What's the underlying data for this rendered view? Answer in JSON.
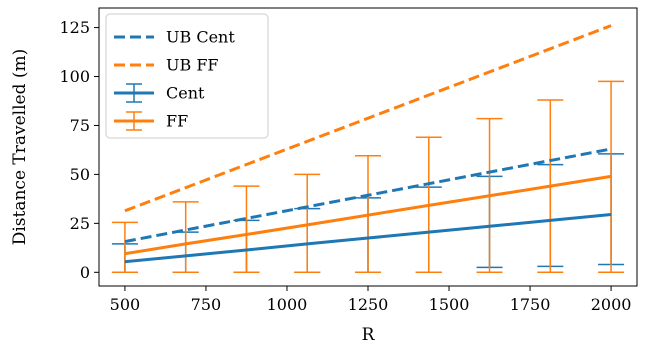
{
  "chart_data": {
    "type": "line",
    "xlabel": "R",
    "ylabel": "Distance Travelled (m)",
    "xlim": [
      420,
      2080
    ],
    "ylim": [
      -7,
      135
    ],
    "xticks": [
      500,
      750,
      1000,
      1250,
      1500,
      1750,
      2000
    ],
    "xtick_labels": [
      "500",
      "750",
      "1000",
      "1250",
      "1500",
      "1750",
      "2000"
    ],
    "yticks": [
      0,
      25,
      50,
      75,
      100,
      125
    ],
    "ytick_labels": [
      "0",
      "25",
      "50",
      "75",
      "100",
      "125"
    ],
    "grid": false,
    "legend_position": "top-left",
    "x": [
      500,
      687.5,
      875,
      1062.5,
      1250,
      1437.5,
      1625,
      1812.5,
      2000
    ],
    "series": [
      {
        "name": "UB Cent",
        "style": "dashed",
        "color": "#1f77b4",
        "x": [
          500,
          2000
        ],
        "values": [
          15.7,
          63
        ]
      },
      {
        "name": "UB FF",
        "style": "dashed",
        "color": "#ff7f0e",
        "x": [
          500,
          2000
        ],
        "values": [
          31.4,
          126
        ]
      },
      {
        "name": "Cent",
        "style": "errorbar",
        "color": "#1f77b4",
        "values": [
          5.4,
          8.4,
          11.4,
          14.5,
          17.5,
          20.5,
          23.5,
          26.5,
          29.5
        ],
        "lower": [
          0,
          0,
          0,
          0,
          0,
          0,
          2.5,
          3,
          4
        ],
        "upper": [
          14.5,
          20.5,
          26.5,
          32.5,
          38,
          43.5,
          49,
          55,
          60.5
        ]
      },
      {
        "name": "FF",
        "style": "errorbar",
        "color": "#ff7f0e",
        "values": [
          9.5,
          14.5,
          19.3,
          24.2,
          29.2,
          34.2,
          39.1,
          44,
          49
        ],
        "lower": [
          0,
          0,
          0,
          0,
          0,
          0,
          0,
          0,
          0
        ],
        "upper": [
          25.5,
          36,
          44,
          50,
          59.5,
          69,
          78.5,
          88,
          97.5
        ]
      }
    ]
  }
}
